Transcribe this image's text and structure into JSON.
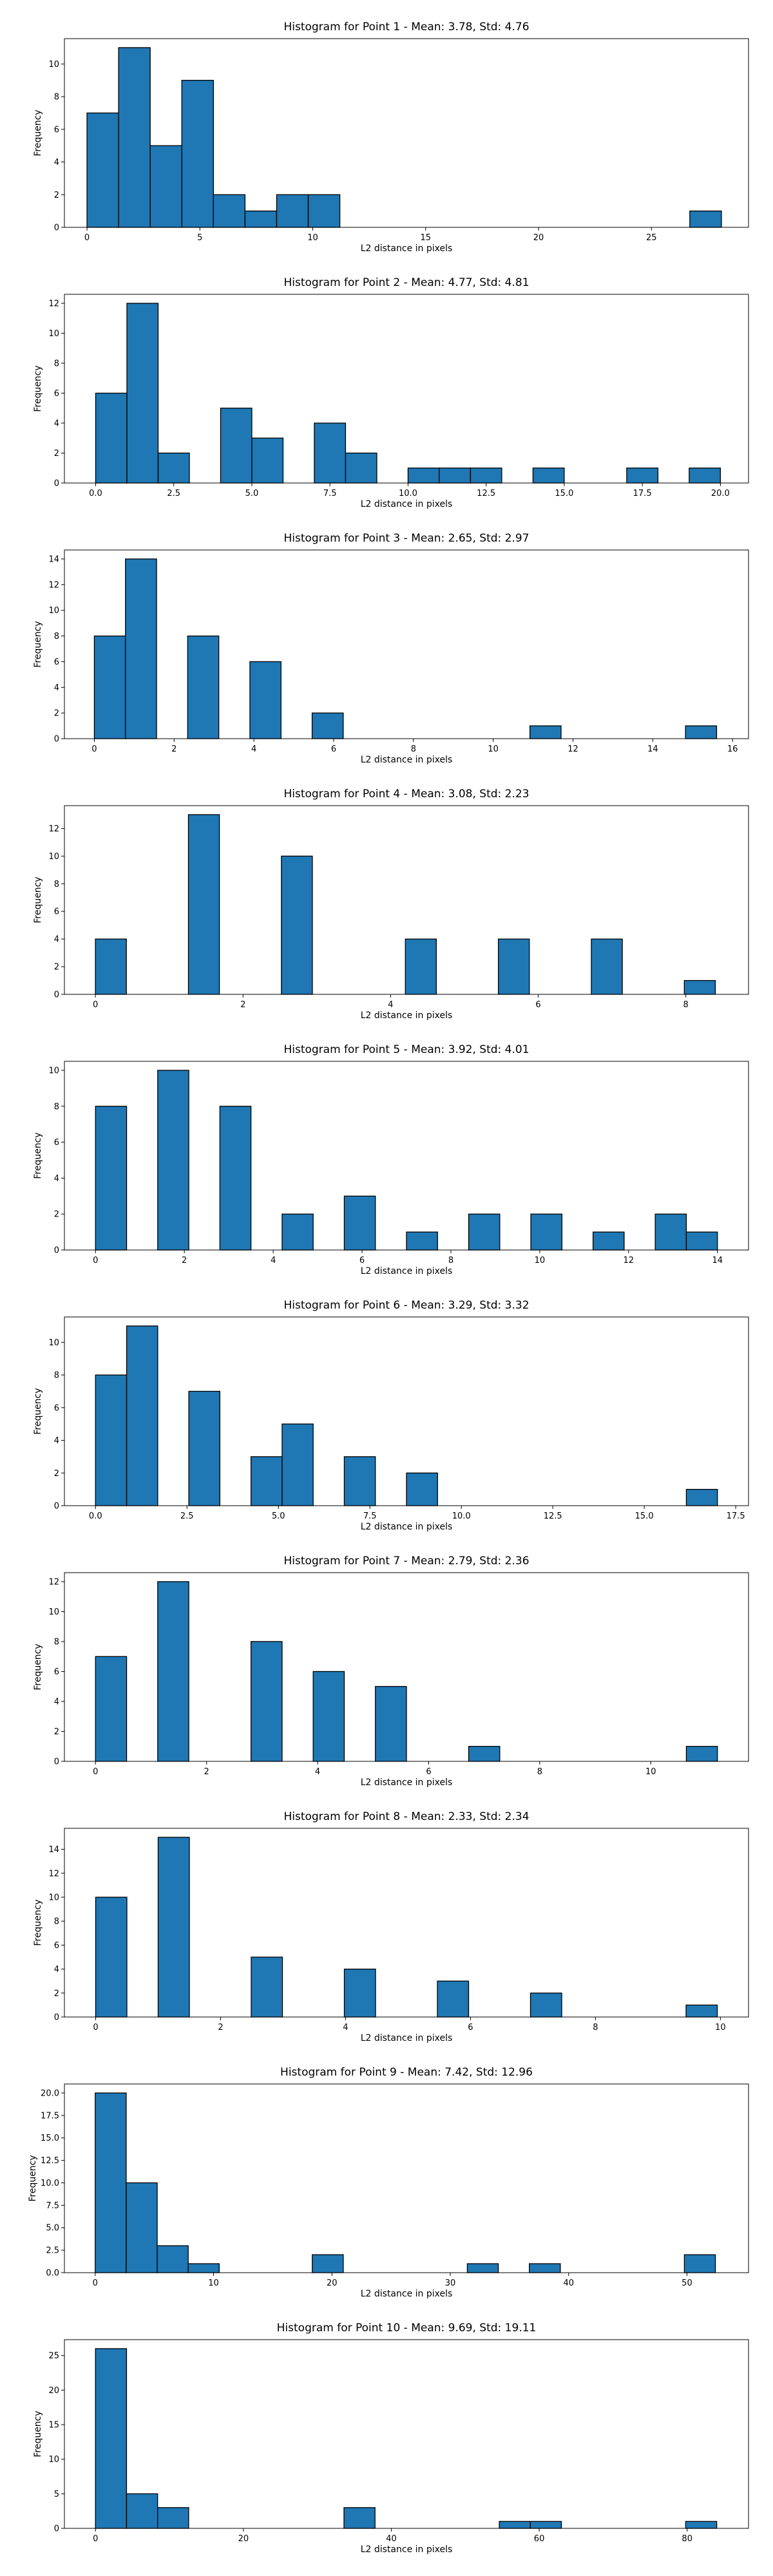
{
  "colors": {
    "bar_fill": "#1f77b4",
    "bar_edge": "#000000",
    "axes": "#000000"
  },
  "chart_data": [
    {
      "type": "bar",
      "title": "Histogram for Point 1 - Mean: 3.78, Std: 4.76",
      "xlabel": "L2 distance in pixels",
      "ylabel": "Frequency",
      "xlim": [
        -1.0,
        29.3
      ],
      "ylim": [
        0,
        11.55
      ],
      "xticks": [
        0,
        5,
        10,
        15,
        20,
        25
      ],
      "yticks": [
        0,
        2,
        4,
        6,
        8,
        10
      ],
      "bin_width": 1.4,
      "bins": [
        [
          0.0,
          7
        ],
        [
          1.4,
          11
        ],
        [
          2.8,
          5
        ],
        [
          4.2,
          9
        ],
        [
          5.6,
          2
        ],
        [
          7.0,
          1
        ],
        [
          8.4,
          2
        ],
        [
          9.8,
          2
        ],
        [
          26.7,
          1
        ]
      ]
    },
    {
      "type": "bar",
      "title": "Histogram for Point 2 - Mean: 4.77, Std: 4.81",
      "xlabel": "L2 distance in pixels",
      "ylabel": "Frequency",
      "xlim": [
        -1.0,
        20.9
      ],
      "ylim": [
        0,
        12.6
      ],
      "xticks": [
        0.0,
        2.5,
        5.0,
        7.5,
        10.0,
        12.5,
        15.0,
        17.5,
        20.0
      ],
      "xtick_labels": [
        "0.0",
        "2.5",
        "5.0",
        "7.5",
        "10.0",
        "12.5",
        "15.0",
        "17.5",
        "20.0"
      ],
      "yticks": [
        0,
        2,
        4,
        6,
        8,
        10,
        12
      ],
      "bin_width": 1.0,
      "bins": [
        [
          0.0,
          6
        ],
        [
          1.0,
          12
        ],
        [
          2.0,
          2
        ],
        [
          4.0,
          5
        ],
        [
          5.0,
          3
        ],
        [
          7.0,
          4
        ],
        [
          8.0,
          2
        ],
        [
          10.0,
          1
        ],
        [
          11.0,
          1
        ],
        [
          12.0,
          1
        ],
        [
          14.0,
          1
        ],
        [
          17.0,
          1
        ],
        [
          19.0,
          1
        ]
      ]
    },
    {
      "type": "bar",
      "title": "Histogram for Point 3 - Mean: 2.65, Std: 2.97",
      "xlabel": "L2 distance in pixels",
      "ylabel": "Frequency",
      "xlim": [
        -0.75,
        16.4
      ],
      "ylim": [
        0,
        14.7
      ],
      "xticks": [
        0,
        2,
        4,
        6,
        8,
        10,
        12,
        14,
        16
      ],
      "yticks": [
        0,
        2,
        4,
        6,
        8,
        10,
        12,
        14
      ],
      "bin_width": 0.78,
      "bins": [
        [
          0.0,
          8
        ],
        [
          0.78,
          14
        ],
        [
          2.34,
          8
        ],
        [
          3.9,
          6
        ],
        [
          5.46,
          2
        ],
        [
          10.92,
          1
        ],
        [
          14.82,
          1
        ]
      ]
    },
    {
      "type": "bar",
      "title": "Histogram for Point 4 - Mean: 3.08, Std: 2.23",
      "xlabel": "L2 distance in pixels",
      "ylabel": "Frequency",
      "xlim": [
        -0.42,
        8.85
      ],
      "ylim": [
        0,
        13.65
      ],
      "xticks": [
        0,
        2,
        4,
        6,
        8
      ],
      "yticks": [
        0,
        2,
        4,
        6,
        8,
        10,
        12
      ],
      "bin_width": 0.42,
      "bins": [
        [
          0.0,
          4
        ],
        [
          1.26,
          13
        ],
        [
          2.52,
          10
        ],
        [
          4.2,
          4
        ],
        [
          5.46,
          4
        ],
        [
          6.72,
          4
        ],
        [
          7.98,
          1
        ]
      ]
    },
    {
      "type": "bar",
      "title": "Histogram for Point 5 - Mean: 3.92, Std: 4.01",
      "xlabel": "L2 distance in pixels",
      "ylabel": "Frequency",
      "xlim": [
        -0.7,
        14.7
      ],
      "ylim": [
        0,
        10.5
      ],
      "xticks": [
        0,
        2,
        4,
        6,
        8,
        10,
        12,
        14
      ],
      "yticks": [
        0,
        2,
        4,
        6,
        8,
        10
      ],
      "bin_width": 0.7,
      "bins": [
        [
          0.0,
          8
        ],
        [
          1.4,
          10
        ],
        [
          2.8,
          8
        ],
        [
          4.2,
          2
        ],
        [
          5.6,
          3
        ],
        [
          7.0,
          1
        ],
        [
          8.4,
          2
        ],
        [
          9.8,
          2
        ],
        [
          11.2,
          1
        ],
        [
          12.6,
          2
        ],
        [
          13.3,
          1
        ]
      ]
    },
    {
      "type": "bar",
      "title": "Histogram for Point 6 - Mean: 3.29, Std: 3.32",
      "xlabel": "L2 distance in pixels",
      "ylabel": "Frequency",
      "xlim": [
        -0.85,
        17.85
      ],
      "ylim": [
        0,
        11.55
      ],
      "xticks": [
        0.0,
        2.5,
        5.0,
        7.5,
        10.0,
        12.5,
        15.0,
        17.5
      ],
      "xtick_labels": [
        "0.0",
        "2.5",
        "5.0",
        "7.5",
        "10.0",
        "12.5",
        "15.0",
        "17.5"
      ],
      "yticks": [
        0,
        2,
        4,
        6,
        8,
        10
      ],
      "bin_width": 0.85,
      "bins": [
        [
          0.0,
          8
        ],
        [
          0.85,
          11
        ],
        [
          2.55,
          7
        ],
        [
          4.25,
          3
        ],
        [
          5.1,
          5
        ],
        [
          6.8,
          3
        ],
        [
          8.5,
          2
        ],
        [
          16.15,
          1
        ]
      ]
    },
    {
      "type": "bar",
      "title": "Histogram for Point 7 - Mean: 2.79, Std: 2.36",
      "xlabel": "L2 distance in pixels",
      "ylabel": "Frequency",
      "xlim": [
        -0.56,
        11.76
      ],
      "ylim": [
        0,
        12.6
      ],
      "xticks": [
        0,
        2,
        4,
        6,
        8,
        10
      ],
      "yticks": [
        0,
        2,
        4,
        6,
        8,
        10,
        12
      ],
      "bin_width": 0.56,
      "bins": [
        [
          0.0,
          7
        ],
        [
          1.12,
          12
        ],
        [
          2.8,
          8
        ],
        [
          3.92,
          6
        ],
        [
          5.04,
          5
        ],
        [
          6.72,
          1
        ],
        [
          10.64,
          1
        ]
      ]
    },
    {
      "type": "bar",
      "title": "Histogram for Point 8 - Mean: 2.33, Std: 2.34",
      "xlabel": "L2 distance in pixels",
      "ylabel": "Frequency",
      "xlim": [
        -0.5,
        10.45
      ],
      "ylim": [
        0,
        15.75
      ],
      "xticks": [
        0,
        2,
        4,
        6,
        8,
        10
      ],
      "yticks": [
        0,
        2,
        4,
        6,
        8,
        10,
        12,
        14
      ],
      "bin_width": 0.5,
      "bins": [
        [
          0.0,
          10
        ],
        [
          1.0,
          15
        ],
        [
          2.49,
          5
        ],
        [
          3.98,
          4
        ],
        [
          5.47,
          3
        ],
        [
          6.96,
          2
        ],
        [
          9.45,
          1
        ]
      ]
    },
    {
      "type": "bar",
      "title": "Histogram for Point 9 - Mean: 7.42, Std: 12.96",
      "xlabel": "L2 distance in pixels",
      "ylabel": "Frequency",
      "xlim": [
        -2.6,
        55.2
      ],
      "ylim": [
        0,
        21.0
      ],
      "xticks": [
        0,
        10,
        20,
        30,
        40,
        50
      ],
      "yticks": [
        0.0,
        2.5,
        5.0,
        7.5,
        10.0,
        12.5,
        15.0,
        17.5,
        20.0
      ],
      "ytick_labels": [
        "0.0",
        "2.5",
        "5.0",
        "7.5",
        "10.0",
        "12.5",
        "15.0",
        "17.5",
        "20.0"
      ],
      "bin_width": 2.62,
      "bins": [
        [
          0.0,
          20
        ],
        [
          2.62,
          10
        ],
        [
          5.24,
          3
        ],
        [
          7.86,
          1
        ],
        [
          18.34,
          2
        ],
        [
          31.44,
          1
        ],
        [
          36.68,
          1
        ],
        [
          49.78,
          2
        ]
      ]
    },
    {
      "type": "bar",
      "title": "Histogram for Point 10 - Mean: 9.69, Std: 19.11",
      "xlabel": "L2 distance in pixels",
      "ylabel": "Frequency",
      "xlim": [
        -4.2,
        88.3
      ],
      "ylim": [
        0,
        27.3
      ],
      "xticks": [
        0,
        20,
        40,
        60,
        80
      ],
      "yticks": [
        0,
        5,
        10,
        15,
        20,
        25
      ],
      "bin_width": 4.2,
      "bins": [
        [
          0.0,
          26
        ],
        [
          4.2,
          5
        ],
        [
          8.4,
          3
        ],
        [
          33.6,
          3
        ],
        [
          54.6,
          1
        ],
        [
          58.8,
          1
        ],
        [
          79.8,
          1
        ]
      ]
    }
  ]
}
